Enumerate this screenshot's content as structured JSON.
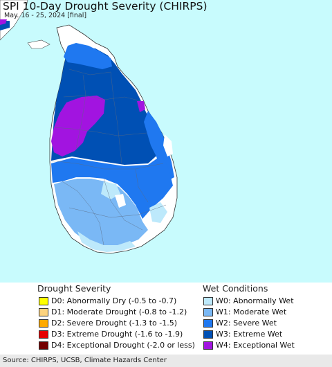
{
  "map": {
    "title": "SPI 10-Day Drought Severity (CHIRPS)",
    "subtitle": "May. 16 - 25, 2024 [final]"
  },
  "legend": {
    "drought": {
      "title": "Drought Severity",
      "items": [
        {
          "label": "D0: Abnormally Dry (-0.5 to -0.7)",
          "color": "#ffff00"
        },
        {
          "label": "D1: Moderate Drought (-0.8 to -1.2)",
          "color": "#fcd37f"
        },
        {
          "label": "D2: Severe Drought (-1.3 to -1.5)",
          "color": "#ffaa00"
        },
        {
          "label": "D3: Extreme Drought (-1.6 to -1.9)",
          "color": "#e60000"
        },
        {
          "label": "D4: Exceptional Drought (-2.0 or less)",
          "color": "#730000"
        }
      ]
    },
    "wet": {
      "title": "Wet Conditions",
      "items": [
        {
          "label": "W0: Abnormally Wet",
          "color": "#bde9fb"
        },
        {
          "label": "W1: Moderate Wet",
          "color": "#7ab8f5"
        },
        {
          "label": "W2: Severe Wet",
          "color": "#1f78f0"
        },
        {
          "label": "W3: Extreme Wet",
          "color": "#0050b4"
        },
        {
          "label": "W4: Exceptional Wet",
          "color": "#a214e0"
        }
      ]
    }
  },
  "footer": {
    "source": "Source: CHIRPS, UCSB, Climate Hazards Center"
  },
  "colors": {
    "sea": "#c8fbfd",
    "normal": "#ffffff"
  }
}
